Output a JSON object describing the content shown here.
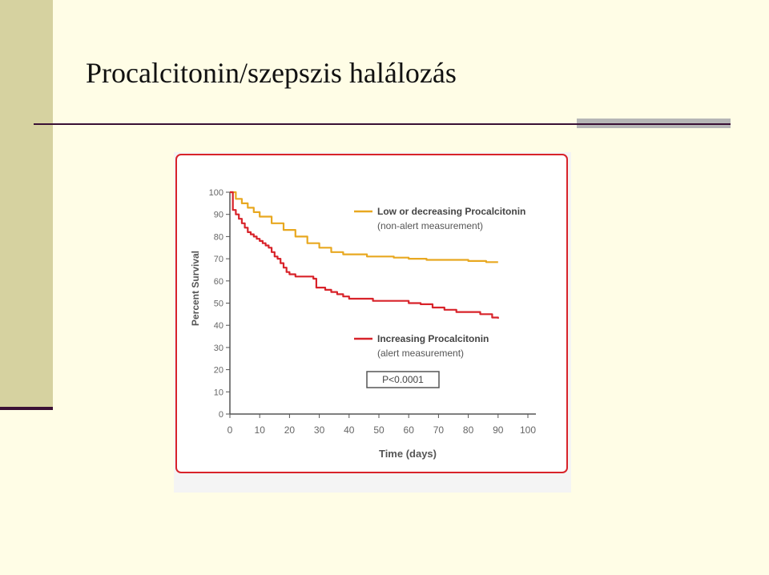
{
  "slide": {
    "title": "Procalcitonin/szepszis halálozás"
  },
  "chart_data": {
    "type": "line",
    "xlabel": "Time (days)",
    "ylabel": "Percent Survival",
    "xlim": [
      0,
      100
    ],
    "ylim": [
      0,
      100
    ],
    "x_ticks": [
      "0",
      "10",
      "20",
      "30",
      "40",
      "50",
      "60",
      "70",
      "80",
      "90",
      "100"
    ],
    "y_ticks": [
      "0",
      "10",
      "20",
      "30",
      "40",
      "50",
      "60",
      "70",
      "80",
      "90",
      "100"
    ],
    "grid": false,
    "annotation": "P<0.0001",
    "series": [
      {
        "name": "Low or decreasing Procalcitonin",
        "subtitle": "(non-alert measurement)",
        "color": "#e8a820",
        "x": [
          0,
          2,
          4,
          6,
          8,
          10,
          14,
          18,
          22,
          26,
          30,
          34,
          38,
          42,
          46,
          50,
          55,
          60,
          66,
          72,
          80,
          86,
          90
        ],
        "y": [
          100,
          97,
          95,
          93,
          91,
          89,
          86,
          83,
          80,
          77,
          75,
          73,
          72,
          72,
          71,
          71,
          70.5,
          70,
          69.5,
          69.5,
          69,
          68.5,
          68.5
        ]
      },
      {
        "name": "Increasing Procalcitonin",
        "subtitle": "(alert measurement)",
        "color": "#d8232a",
        "x": [
          0,
          1,
          2,
          3,
          4,
          5,
          6,
          7,
          8,
          9,
          10,
          11,
          12,
          13,
          14,
          15,
          16,
          17,
          18,
          19,
          20,
          22,
          24,
          26,
          28,
          29,
          30,
          32,
          34,
          36,
          38,
          40,
          44,
          48,
          52,
          56,
          60,
          64,
          68,
          72,
          76,
          80,
          84,
          88,
          90
        ],
        "y": [
          100,
          92,
          90,
          88,
          86,
          84,
          82,
          81,
          80,
          79,
          78,
          77,
          76,
          75,
          73,
          71,
          70,
          68,
          66,
          64,
          63,
          62,
          62,
          62,
          61,
          57,
          57,
          56,
          55,
          54,
          53,
          52,
          52,
          51,
          51,
          51,
          50,
          49.5,
          48,
          47,
          46,
          46,
          45,
          43.5,
          43
        ]
      }
    ]
  }
}
